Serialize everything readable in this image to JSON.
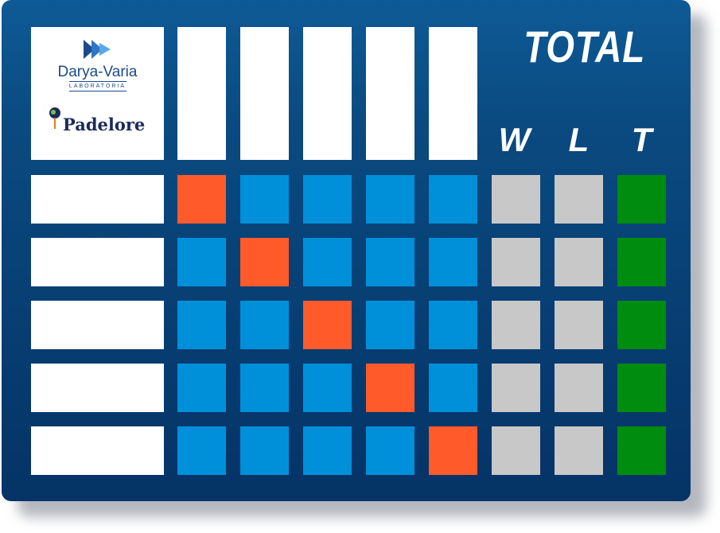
{
  "logos": {
    "brand1_name": "Darya-Varia",
    "brand1_sub": "LABORATORIA",
    "brand2_name": "Padelore"
  },
  "header": {
    "total_label": "TOTAL",
    "columns": [
      "W",
      "L",
      "T"
    ]
  },
  "colors": {
    "board_top": "#0e5a96",
    "board_bottom": "#053366",
    "diagonal_cell": "#ff5a2a",
    "match_cell": "#0090da",
    "wl_cell": "#c8c8c8",
    "total_cell": "#008c0f"
  },
  "grid": {
    "rows": 5,
    "player_columns": 5,
    "diagonal_marked": true
  }
}
